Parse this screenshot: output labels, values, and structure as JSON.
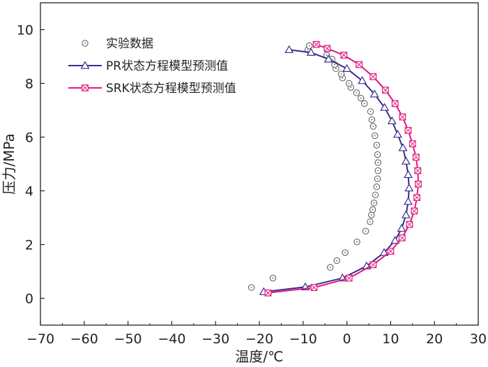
{
  "chart_data": {
    "type": "scatter",
    "title": "",
    "xlabel": "温度/℃",
    "ylabel": "压力/MPa",
    "xlim": [
      -70,
      30
    ],
    "ylim": [
      -1,
      11
    ],
    "xticks": [
      -70,
      -60,
      -50,
      -40,
      -30,
      -20,
      -10,
      0,
      10,
      20,
      30
    ],
    "xtick_labels": [
      "−70",
      "−60",
      "−50",
      "−40",
      "−30",
      "−20",
      "−10",
      "0",
      "10",
      "20",
      "30"
    ],
    "yticks": [
      0,
      2,
      4,
      6,
      8,
      10
    ],
    "ytick_labels": [
      "0",
      "2",
      "4",
      "6",
      "8",
      "10"
    ],
    "grid": false,
    "legend_position": "top-left",
    "series": [
      {
        "name": "实验数据",
        "marker": "circle-dot",
        "color": "#555555",
        "line": false,
        "points": [
          [
            -21.8,
            0.4
          ],
          [
            -16.9,
            0.75
          ],
          [
            -3.8,
            1.15
          ],
          [
            -2.3,
            1.4
          ],
          [
            -0.4,
            1.7
          ],
          [
            2.3,
            2.1
          ],
          [
            4.3,
            2.5
          ],
          [
            5.3,
            2.85
          ],
          [
            5.6,
            3.1
          ],
          [
            5.9,
            3.3
          ],
          [
            6.2,
            3.55
          ],
          [
            6.5,
            3.85
          ],
          [
            6.8,
            4.15
          ],
          [
            7.0,
            4.45
          ],
          [
            7.1,
            4.75
          ],
          [
            7.1,
            5.05
          ],
          [
            7.0,
            5.35
          ],
          [
            6.8,
            5.7
          ],
          [
            6.4,
            6.05
          ],
          [
            6.0,
            6.4
          ],
          [
            5.7,
            6.65
          ],
          [
            5.4,
            6.95
          ],
          [
            4.0,
            7.25
          ],
          [
            3.2,
            7.45
          ],
          [
            2.2,
            7.65
          ],
          [
            0.9,
            7.85
          ],
          [
            0.5,
            8.0
          ],
          [
            -1.0,
            8.2
          ],
          [
            -1.3,
            8.35
          ],
          [
            -2.5,
            8.55
          ],
          [
            -2.8,
            8.7
          ],
          [
            -3.4,
            8.9
          ],
          [
            -4.6,
            9.05
          ],
          [
            -8.9,
            9.25
          ],
          [
            -8.6,
            9.4
          ]
        ]
      },
      {
        "name": "PR状态方程模型预测值",
        "marker": "triangle",
        "color": "#3c2a8c",
        "line": true,
        "points": [
          [
            -19.0,
            0.24
          ],
          [
            -9.5,
            0.42
          ],
          [
            -1.0,
            0.75
          ],
          [
            4.5,
            1.2
          ],
          [
            8.5,
            1.7
          ],
          [
            11.0,
            2.15
          ],
          [
            12.5,
            2.6
          ],
          [
            13.5,
            3.1
          ],
          [
            14.0,
            3.6
          ],
          [
            14.2,
            4.1
          ],
          [
            14.0,
            4.6
          ],
          [
            13.5,
            5.1
          ],
          [
            12.8,
            5.6
          ],
          [
            11.6,
            6.1
          ],
          [
            10.3,
            6.6
          ],
          [
            8.6,
            7.1
          ],
          [
            6.3,
            7.6
          ],
          [
            3.5,
            8.1
          ],
          [
            0.0,
            8.55
          ],
          [
            -4.2,
            8.9
          ],
          [
            -8.2,
            9.15
          ],
          [
            -13.2,
            9.25
          ]
        ]
      },
      {
        "name": "SRK状态方程模型预测值",
        "marker": "square-x",
        "color": "#e0197d",
        "line": true,
        "points": [
          [
            -18.0,
            0.2
          ],
          [
            -7.5,
            0.4
          ],
          [
            0.5,
            0.75
          ],
          [
            6.0,
            1.25
          ],
          [
            10.0,
            1.75
          ],
          [
            12.6,
            2.25
          ],
          [
            14.3,
            2.75
          ],
          [
            15.4,
            3.25
          ],
          [
            16.0,
            3.75
          ],
          [
            16.3,
            4.25
          ],
          [
            16.2,
            4.75
          ],
          [
            15.8,
            5.25
          ],
          [
            15.0,
            5.75
          ],
          [
            14.0,
            6.25
          ],
          [
            12.7,
            6.75
          ],
          [
            11.0,
            7.25
          ],
          [
            8.8,
            7.75
          ],
          [
            6.0,
            8.25
          ],
          [
            2.8,
            8.7
          ],
          [
            -0.7,
            9.05
          ],
          [
            -4.5,
            9.3
          ],
          [
            -7.0,
            9.45
          ]
        ]
      }
    ]
  }
}
